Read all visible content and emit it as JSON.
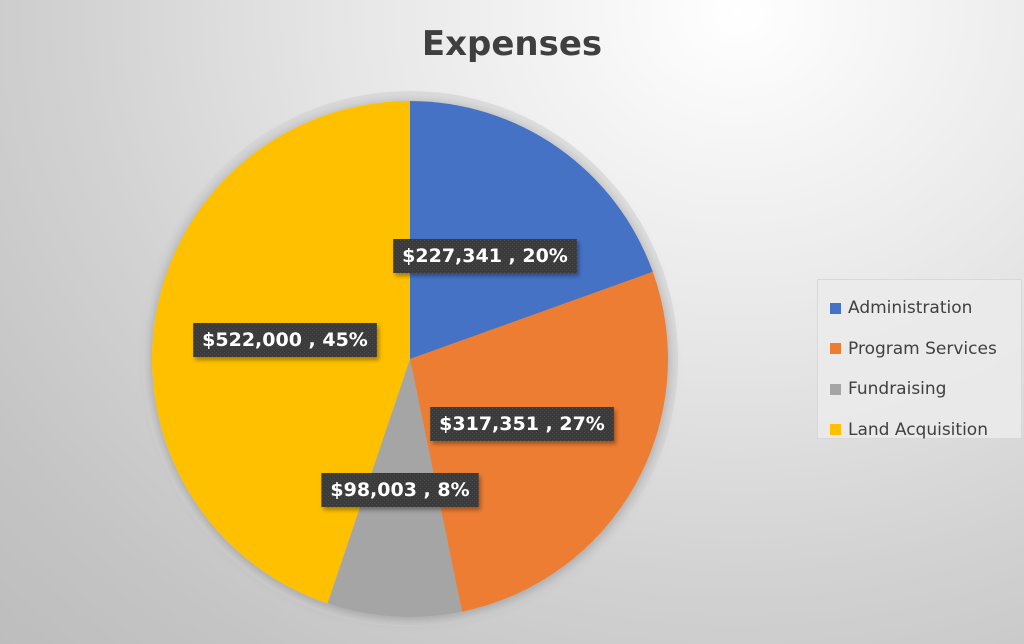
{
  "chart_data": {
    "type": "pie",
    "title": "Expenses",
    "categories": [
      "Administration",
      "Program Services",
      "Fundraising",
      "Land Acquisition"
    ],
    "values": [
      227341,
      317351,
      98003,
      522000
    ],
    "data_labels": [
      "$227,341 , 20%",
      "$317,351 , 27%",
      "$98,003 , 8%",
      "$522,000 , 45%"
    ],
    "colors": [
      "#4472C4",
      "#ED7D31",
      "#A5A5A5",
      "#FFC000"
    ],
    "legend_position": "right"
  }
}
